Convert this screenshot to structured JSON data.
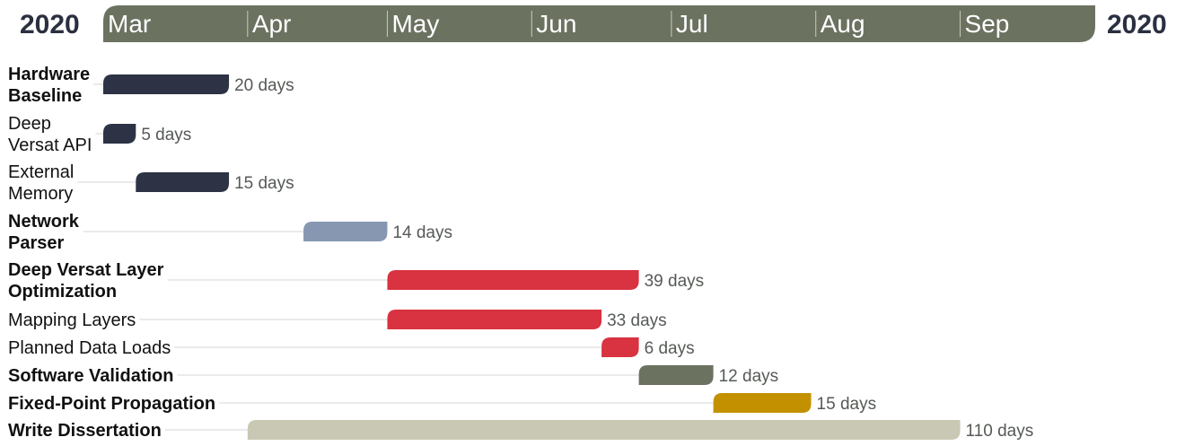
{
  "chart_data": {
    "type": "gantt",
    "year_left": "2020",
    "year_right": "2020",
    "x_range": [
      "2020-03-01",
      "2020-09-30"
    ],
    "months": [
      {
        "label": "Mar",
        "start": "2020-03-01"
      },
      {
        "label": "Apr",
        "start": "2020-04-01"
      },
      {
        "label": "May",
        "start": "2020-05-01"
      },
      {
        "label": "Jun",
        "start": "2020-06-01"
      },
      {
        "label": "Jul",
        "start": "2020-07-01"
      },
      {
        "label": "Aug",
        "start": "2020-08-01"
      },
      {
        "label": "Sep",
        "start": "2020-09-01"
      }
    ],
    "colors": {
      "header": "#6b7260",
      "navy": "#2d3344",
      "steel": "#8797b2",
      "red": "#d93240",
      "olive": "#6b7260",
      "gold": "#c39100",
      "sand": "#c8c8b4"
    },
    "tasks": [
      {
        "lines": [
          "Hardware",
          "Baseline"
        ],
        "bold": true,
        "start": "2020-03-01",
        "end": "2020-03-28",
        "duration_label": "20 days",
        "color": "navy"
      },
      {
        "lines": [
          "Deep",
          "Versat API"
        ],
        "bold": false,
        "start": "2020-03-01",
        "end": "2020-03-08",
        "duration_label": "5 days",
        "color": "navy"
      },
      {
        "lines": [
          "External",
          "Memory"
        ],
        "bold": false,
        "start": "2020-03-08",
        "end": "2020-03-28",
        "duration_label": "15 days",
        "color": "navy"
      },
      {
        "lines": [
          "Network",
          "Parser"
        ],
        "bold": true,
        "start": "2020-04-13",
        "end": "2020-05-01",
        "duration_label": "14 days",
        "color": "steel"
      },
      {
        "lines": [
          "Deep Versat Layer",
          "Optimization"
        ],
        "bold": true,
        "start": "2020-05-01",
        "end": "2020-06-24",
        "duration_label": "39 days",
        "color": "red"
      },
      {
        "lines": [
          "Mapping Layers"
        ],
        "bold": false,
        "start": "2020-05-01",
        "end": "2020-06-16",
        "duration_label": "33 days",
        "color": "red"
      },
      {
        "lines": [
          "Planned Data Loads"
        ],
        "bold": false,
        "start": "2020-06-16",
        "end": "2020-06-24",
        "duration_label": "6 days",
        "color": "red"
      },
      {
        "lines": [
          "Software Validation"
        ],
        "bold": true,
        "start": "2020-06-24",
        "end": "2020-07-10",
        "duration_label": "12 days",
        "color": "olive"
      },
      {
        "lines": [
          "Fixed-Point Propagation"
        ],
        "bold": true,
        "start": "2020-07-10",
        "end": "2020-07-31",
        "duration_label": "15 days",
        "color": "gold"
      },
      {
        "lines": [
          "Write Dissertation"
        ],
        "bold": true,
        "start": "2020-04-01",
        "end": "2020-09-01",
        "duration_label": "110 days",
        "color": "sand"
      }
    ]
  }
}
